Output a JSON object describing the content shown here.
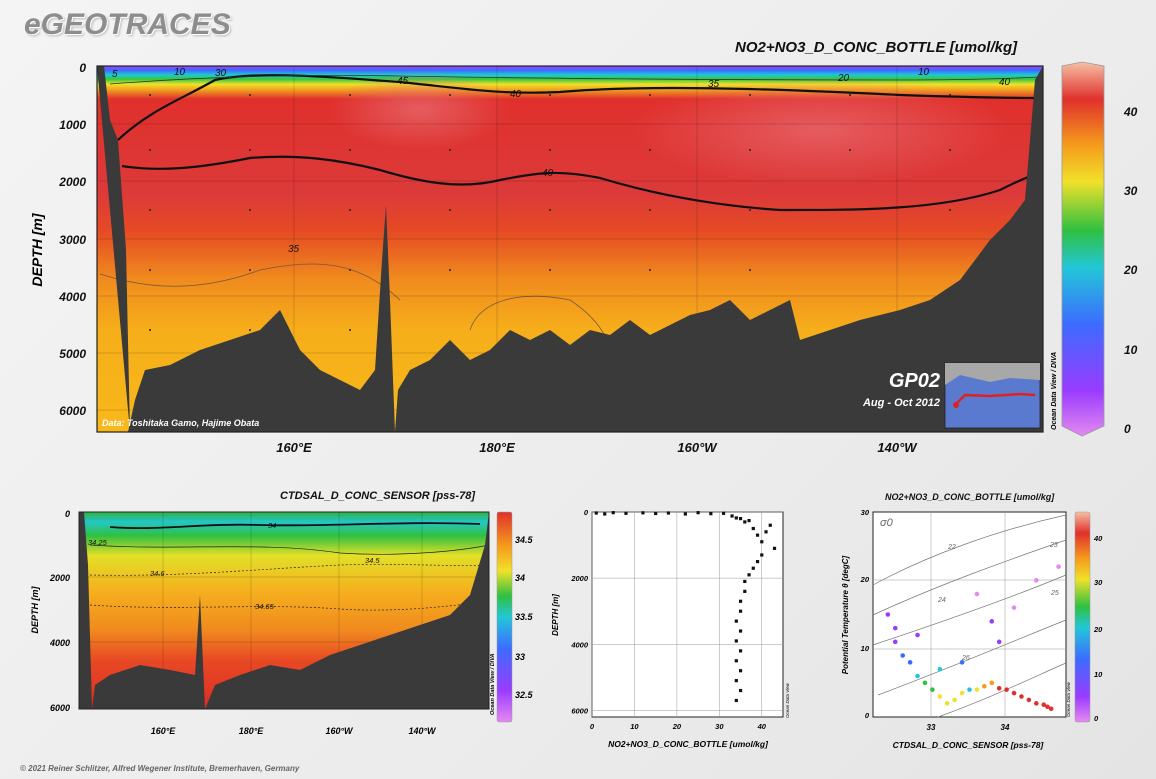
{
  "brand": "eGEOTRACES",
  "footer": "© 2021 Reiner Schlitzer, Alfred Wegener Institute, Bremerhaven, Germany",
  "main_section": {
    "title": "NO2+NO3_D_CONC_BOTTLE [umol/kg]",
    "ylabel": "DEPTH [m]",
    "y_ticks": [
      "0",
      "1000",
      "2000",
      "3000",
      "4000",
      "5000",
      "6000"
    ],
    "x_ticks": [
      "160°E",
      "180°E",
      "160°W",
      "140°W"
    ],
    "contour_labels": [
      "5",
      "10",
      "30",
      "45",
      "40",
      "35",
      "20",
      "10",
      "40",
      "40",
      "35"
    ],
    "colorbar_ticks": [
      "40",
      "30",
      "20",
      "10",
      "0"
    ],
    "data_credit": "Data: Toshitaka Gamo, Hajime Obata",
    "odv_credit": "Ocean Data View / DIVA",
    "cruise": "GP02",
    "period": "Aug - Oct 2012"
  },
  "salinity_section": {
    "title": "CTDSAL_D_CONC_SENSOR [pss-78]",
    "ylabel": "DEPTH [m]",
    "y_ticks": [
      "0",
      "2000",
      "4000",
      "6000"
    ],
    "x_ticks": [
      "160°E",
      "180°E",
      "160°W",
      "140°W"
    ],
    "contour_labels": [
      "34",
      "34.25",
      "34.5",
      "34.6",
      "34.65"
    ],
    "colorbar_ticks": [
      "34.5",
      "34",
      "33.5",
      "33",
      "32.5"
    ],
    "odv_credit": "Ocean Data View / DIVA"
  },
  "chart_data": [
    {
      "type": "heatmap",
      "title": "NO2+NO3_D_CONC_BOTTLE [umol/kg]",
      "ylabel": "DEPTH [m]",
      "x_ticks": [
        "160°E",
        "180°E",
        "160°W",
        "140°W"
      ],
      "ylim": [
        6300,
        0
      ],
      "colorbar_range": [
        0,
        45
      ],
      "contours": [
        5,
        10,
        20,
        30,
        35,
        40,
        45
      ]
    },
    {
      "type": "heatmap",
      "title": "CTDSAL_D_CONC_SENSOR [pss-78]",
      "ylabel": "DEPTH [m]",
      "ylim": [
        6300,
        0
      ],
      "colorbar_range": [
        32.3,
        34.7
      ],
      "contours": [
        34,
        34.25,
        34.5,
        34.6,
        34.65
      ]
    },
    {
      "type": "scatter",
      "xlabel": "NO2+NO3_D_CONC_BOTTLE [umol/kg]",
      "ylabel": "DEPTH [m]",
      "xlim": [
        0,
        45
      ],
      "ylim": [
        6200,
        0
      ],
      "x_ticks": [
        "0",
        "10",
        "20",
        "30",
        "40"
      ],
      "y_ticks": [
        "0",
        "2000",
        "4000",
        "6000"
      ],
      "odv_credit": "Ocean Data View",
      "points": [
        [
          1,
          30
        ],
        [
          3,
          60
        ],
        [
          5,
          20
        ],
        [
          8,
          40
        ],
        [
          12,
          25
        ],
        [
          15,
          45
        ],
        [
          18,
          30
        ],
        [
          22,
          60
        ],
        [
          25,
          20
        ],
        [
          28,
          50
        ],
        [
          31,
          40
        ],
        [
          33,
          120
        ],
        [
          34,
          180
        ],
        [
          35,
          200
        ],
        [
          36,
          300
        ],
        [
          37,
          260
        ],
        [
          38,
          500
        ],
        [
          39,
          700
        ],
        [
          40,
          900
        ],
        [
          41,
          600
        ],
        [
          42,
          400
        ],
        [
          43,
          1100
        ],
        [
          40,
          1300
        ],
        [
          39,
          1500
        ],
        [
          38,
          1700
        ],
        [
          37,
          1900
        ],
        [
          36,
          2100
        ],
        [
          36,
          2400
        ],
        [
          35,
          2700
        ],
        [
          35,
          3000
        ],
        [
          34,
          3300
        ],
        [
          35,
          3600
        ],
        [
          34,
          3900
        ],
        [
          35,
          4200
        ],
        [
          34,
          4500
        ],
        [
          35,
          4800
        ],
        [
          34,
          5100
        ],
        [
          35,
          5400
        ],
        [
          34,
          5700
        ]
      ]
    },
    {
      "type": "scatter",
      "title": "NO2+NO3_D_CONC_BOTTLE [umol/kg]",
      "xlabel": "CTDSAL_D_CONC_SENSOR [pss-78]",
      "ylabel": "Potential Temperature θ [degC]",
      "xlim": [
        32.3,
        34.9
      ],
      "ylim": [
        0,
        30
      ],
      "x_ticks": [
        "33",
        "34"
      ],
      "y_ticks": [
        "0",
        "10",
        "20",
        "30"
      ],
      "isopycnal_labels": [
        "σ0",
        "22",
        "23",
        "24",
        "25",
        "26"
      ],
      "colorbar_ticks": [
        "40",
        "30",
        "20",
        "10",
        "0"
      ],
      "odv_credit": "Ocean Data View",
      "points": [
        [
          32.5,
          15,
          5
        ],
        [
          32.6,
          13,
          8
        ],
        [
          32.6,
          11,
          12
        ],
        [
          32.7,
          9,
          16
        ],
        [
          32.8,
          8,
          18
        ],
        [
          32.9,
          6,
          22
        ],
        [
          33.0,
          5,
          25
        ],
        [
          33.1,
          4,
          28
        ],
        [
          33.2,
          3,
          30
        ],
        [
          33.3,
          2,
          32
        ],
        [
          33.4,
          2.5,
          33
        ],
        [
          33.5,
          3.5,
          30
        ],
        [
          33.6,
          4,
          20
        ],
        [
          33.7,
          4,
          34
        ],
        [
          33.8,
          4.5,
          36
        ],
        [
          33.9,
          5,
          38
        ],
        [
          34.0,
          4.2,
          40
        ],
        [
          34.1,
          4,
          42
        ],
        [
          34.2,
          3.5,
          43
        ],
        [
          34.3,
          3,
          44
        ],
        [
          34.4,
          2.5,
          44
        ],
        [
          34.5,
          2,
          44
        ],
        [
          34.6,
          1.8,
          43
        ],
        [
          34.65,
          1.5,
          43
        ],
        [
          34.7,
          1.2,
          42
        ],
        [
          32.9,
          12,
          12
        ],
        [
          33.2,
          7,
          20
        ],
        [
          33.5,
          8,
          14
        ],
        [
          33.9,
          14,
          5
        ],
        [
          34.2,
          16,
          4
        ],
        [
          34.5,
          20,
          3
        ],
        [
          34.8,
          22,
          3
        ],
        [
          33.7,
          18,
          4
        ],
        [
          34.0,
          11,
          10
        ]
      ]
    }
  ]
}
